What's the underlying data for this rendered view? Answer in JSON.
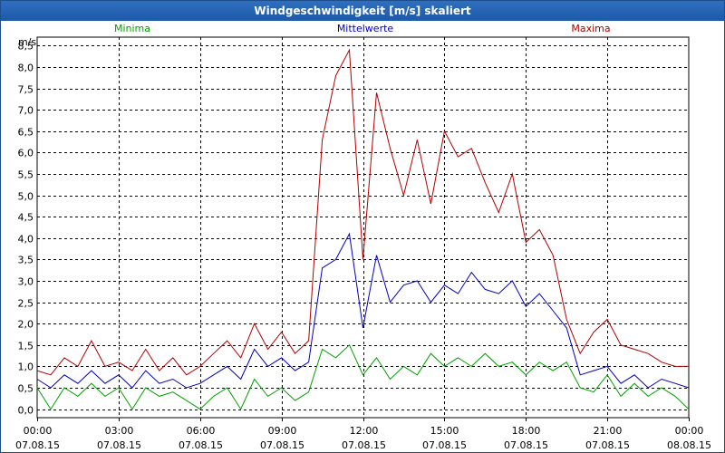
{
  "window": {
    "title": "Windgeschwindigkeit [m/s] skaliert"
  },
  "chart_data": {
    "type": "line",
    "title": "Windgeschwindigkeit [m/s] skaliert",
    "ylabel": "m/s",
    "ylim": [
      -0.2,
      8.7
    ],
    "xlim": [
      0,
      24
    ],
    "y_ticks": [
      {
        "value": 0.0,
        "label": "0,0"
      },
      {
        "value": 0.5,
        "label": "0,5"
      },
      {
        "value": 1.0,
        "label": "1,0"
      },
      {
        "value": 1.5,
        "label": "1,5"
      },
      {
        "value": 2.0,
        "label": "2,0"
      },
      {
        "value": 2.5,
        "label": "2,5"
      },
      {
        "value": 3.0,
        "label": "3,0"
      },
      {
        "value": 3.5,
        "label": "3,5"
      },
      {
        "value": 4.0,
        "label": "4,0"
      },
      {
        "value": 4.5,
        "label": "4,5"
      },
      {
        "value": 5.0,
        "label": "5,0"
      },
      {
        "value": 5.5,
        "label": "5,5"
      },
      {
        "value": 6.0,
        "label": "6,0"
      },
      {
        "value": 6.5,
        "label": "6,5"
      },
      {
        "value": 7.0,
        "label": "7,0"
      },
      {
        "value": 7.5,
        "label": "7,5"
      },
      {
        "value": 8.0,
        "label": "8,0"
      },
      {
        "value": 8.5,
        "label": "8,5"
      }
    ],
    "x_ticks": [
      {
        "value": 0,
        "time": "00:00",
        "date": "07.08.15"
      },
      {
        "value": 3,
        "time": "03:00",
        "date": "07.08.15"
      },
      {
        "value": 6,
        "time": "06:00",
        "date": "07.08.15"
      },
      {
        "value": 9,
        "time": "09:00",
        "date": "07.08.15"
      },
      {
        "value": 12,
        "time": "12:00",
        "date": "07.08.15"
      },
      {
        "value": 15,
        "time": "15:00",
        "date": "07.08.15"
      },
      {
        "value": 18,
        "time": "18:00",
        "date": "07.08.15"
      },
      {
        "value": 21,
        "time": "21:00",
        "date": "07.08.15"
      },
      {
        "value": 24,
        "time": "00:00",
        "date": "08.08.15"
      }
    ],
    "series": [
      {
        "name": "Minima",
        "color": "#00a000",
        "x": [
          0,
          0.5,
          1,
          1.5,
          2,
          2.5,
          3,
          3.5,
          4,
          4.5,
          5,
          5.5,
          6,
          6.5,
          7,
          7.5,
          8,
          8.5,
          9,
          9.5,
          10,
          10.5,
          11,
          11.5,
          12,
          12.5,
          13,
          13.5,
          14,
          14.5,
          15,
          15.5,
          16,
          16.5,
          17,
          17.5,
          18,
          18.5,
          19,
          19.5,
          20,
          20.5,
          21,
          21.5,
          22,
          22.5,
          23,
          23.5,
          24
        ],
        "values": [
          0.5,
          0.0,
          0.5,
          0.3,
          0.6,
          0.3,
          0.5,
          0.0,
          0.5,
          0.3,
          0.4,
          0.2,
          0.0,
          0.3,
          0.5,
          0.0,
          0.7,
          0.3,
          0.5,
          0.2,
          0.4,
          1.4,
          1.2,
          1.5,
          0.8,
          1.2,
          0.7,
          1.0,
          0.8,
          1.3,
          1.0,
          1.2,
          1.0,
          1.3,
          1.0,
          1.1,
          0.8,
          1.1,
          0.9,
          1.1,
          0.5,
          0.4,
          0.8,
          0.3,
          0.6,
          0.3,
          0.5,
          0.3,
          0.0
        ]
      },
      {
        "name": "Mittelwerte",
        "color": "#0000c0",
        "x": [
          0,
          0.5,
          1,
          1.5,
          2,
          2.5,
          3,
          3.5,
          4,
          4.5,
          5,
          5.5,
          6,
          6.5,
          7,
          7.5,
          8,
          8.5,
          9,
          9.5,
          10,
          10.5,
          11,
          11.5,
          12,
          12.5,
          13,
          13.5,
          14,
          14.5,
          15,
          15.5,
          16,
          16.5,
          17,
          17.5,
          18,
          18.5,
          19,
          19.5,
          20,
          20.5,
          21,
          21.5,
          22,
          22.5,
          23,
          23.5,
          24
        ],
        "values": [
          0.7,
          0.5,
          0.8,
          0.6,
          0.9,
          0.6,
          0.8,
          0.5,
          0.9,
          0.6,
          0.7,
          0.5,
          0.6,
          0.8,
          1.0,
          0.7,
          1.4,
          1.0,
          1.2,
          0.9,
          1.1,
          3.3,
          3.5,
          4.1,
          1.9,
          3.6,
          2.5,
          2.9,
          3.0,
          2.5,
          2.9,
          2.7,
          3.2,
          2.8,
          2.7,
          3.0,
          2.4,
          2.7,
          2.3,
          1.9,
          0.8,
          0.9,
          1.0,
          0.6,
          0.8,
          0.5,
          0.7,
          0.6,
          0.5
        ]
      },
      {
        "name": "Maxima",
        "color": "#b00000",
        "x": [
          0,
          0.5,
          1,
          1.5,
          2,
          2.5,
          3,
          3.5,
          4,
          4.5,
          5,
          5.5,
          6,
          6.5,
          7,
          7.5,
          8,
          8.5,
          9,
          9.5,
          10,
          10.5,
          11,
          11.5,
          12,
          12.5,
          13,
          13.5,
          14,
          14.5,
          15,
          15.5,
          16,
          16.5,
          17,
          17.5,
          18,
          18.5,
          19,
          19.5,
          20,
          20.5,
          21,
          21.5,
          22,
          22.5,
          23,
          23.5,
          24
        ],
        "values": [
          0.9,
          0.8,
          1.2,
          1.0,
          1.6,
          1.0,
          1.1,
          0.9,
          1.4,
          0.9,
          1.2,
          0.8,
          1.0,
          1.3,
          1.6,
          1.2,
          2.0,
          1.4,
          1.8,
          1.3,
          1.6,
          6.3,
          7.8,
          8.4,
          3.5,
          7.4,
          6.1,
          5.0,
          6.3,
          4.8,
          6.5,
          5.9,
          6.1,
          5.3,
          4.6,
          5.5,
          3.9,
          4.2,
          3.6,
          2.1,
          1.3,
          1.8,
          2.1,
          1.5,
          1.4,
          1.3,
          1.1,
          1.0,
          1.0
        ]
      }
    ]
  }
}
